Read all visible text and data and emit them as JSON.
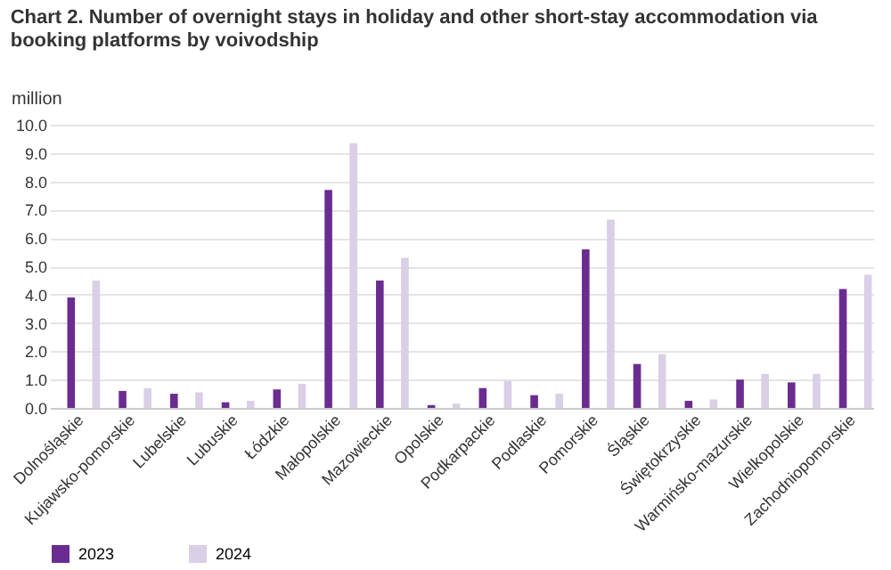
{
  "chart_data": {
    "type": "bar",
    "title": "Chart 2. Number of overnight stays in holiday and other short-stay accommodation via booking platforms by voivodship",
    "ylabel": "million",
    "categories": [
      "Dolnośląskie",
      "Kujawsko-pomorskie",
      "Lubelskie",
      "Lubuskie",
      "Łódzkie",
      "Małopolskie",
      "Mazowieckie",
      "Opolskie",
      "Podkarpackie",
      "Podlaskie",
      "Pomorskie",
      "Śląskie",
      "Świętokrzyskie",
      "Warmińsko-mazurskie",
      "Wielkopolskie",
      "Zachodniopomorskie"
    ],
    "series": [
      {
        "name": "2023",
        "color": "#6b2c91",
        "values": [
          3.9,
          0.6,
          0.5,
          0.2,
          0.65,
          7.7,
          4.5,
          0.1,
          0.7,
          0.45,
          5.6,
          1.55,
          0.25,
          1.0,
          0.9,
          4.2
        ]
      },
      {
        "name": "2024",
        "color": "#d9cfe6",
        "values": [
          4.5,
          0.7,
          0.55,
          0.25,
          0.85,
          9.35,
          5.3,
          0.15,
          0.95,
          0.5,
          6.65,
          1.9,
          0.3,
          1.2,
          1.2,
          4.7
        ]
      }
    ],
    "ylim": [
      0,
      10
    ],
    "yticks": [
      {
        "value": 0,
        "label": "0.0"
      },
      {
        "value": 1,
        "label": "1.0"
      },
      {
        "value": 2,
        "label": "2.0"
      },
      {
        "value": 3,
        "label": "3.0"
      },
      {
        "value": 4,
        "label": "4.0"
      },
      {
        "value": 5,
        "label": "5.0"
      },
      {
        "value": 6,
        "label": "6.0"
      },
      {
        "value": 7,
        "label": "7.0"
      },
      {
        "value": 8,
        "label": "8.0"
      },
      {
        "value": 9,
        "label": "9.0"
      },
      {
        "value": 10,
        "label": "10.0"
      }
    ],
    "grid": "y",
    "legend": "bottom"
  }
}
